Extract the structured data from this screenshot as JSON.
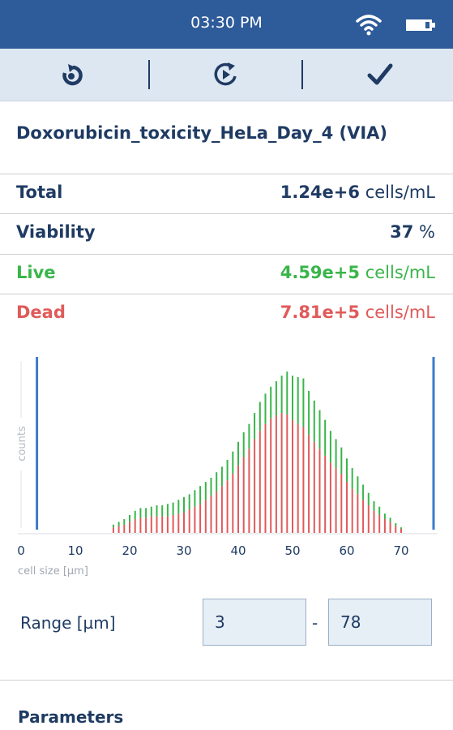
{
  "status_bar": {
    "time": "03:30 PM",
    "wifi_icon": "wifi-icon",
    "battery_icon": "battery-icon"
  },
  "toolbar": {
    "icons": [
      "microscope-refresh-icon",
      "replay-icon",
      "checkmark-icon"
    ]
  },
  "measurement": {
    "title": "Doxorubicin_toxicity_HeLa_Day_4 (VIA)",
    "rows": [
      {
        "label": "Total",
        "value": "1.24e+6",
        "unit": "cells/mL",
        "color": "#1f3b63"
      },
      {
        "label": "Viability",
        "value": "37",
        "unit": "%",
        "color": "#1f3b63"
      },
      {
        "label": "Live",
        "value": "4.59e+5",
        "unit": "cells/mL",
        "color": "#39b54a"
      },
      {
        "label": "Dead",
        "value": "7.81e+5",
        "unit": "cells/mL",
        "color": "#e05a5a"
      }
    ]
  },
  "chart_data": {
    "type": "bar",
    "stacked": true,
    "xlabel": "cell size [µm]",
    "ylabel": "counts",
    "xlim": [
      0,
      75
    ],
    "xticks": [
      0,
      10,
      20,
      30,
      40,
      50,
      60,
      70
    ],
    "range_markers": [
      3,
      78
    ],
    "x": [
      17,
      18,
      19,
      20,
      21,
      22,
      23,
      24,
      25,
      26,
      27,
      28,
      29,
      30,
      31,
      32,
      33,
      34,
      35,
      36,
      37,
      38,
      39,
      40,
      41,
      42,
      43,
      44,
      45,
      46,
      47,
      48,
      49,
      50,
      51,
      52,
      53,
      54,
      55,
      56,
      57,
      58,
      59,
      60,
      61,
      62,
      63,
      64,
      65,
      66,
      67,
      68,
      69,
      70
    ],
    "series": [
      {
        "name": "Dead",
        "color": "#e05a5a",
        "values": [
          4,
          5,
          6,
          8,
          10,
          11,
          11,
          12,
          12,
          12,
          12,
          13,
          14,
          15,
          17,
          19,
          21,
          24,
          27,
          30,
          34,
          38,
          43,
          49,
          55,
          61,
          68,
          74,
          79,
          83,
          85,
          87,
          86,
          82,
          79,
          77,
          71,
          66,
          61,
          56,
          51,
          47,
          43,
          37,
          32,
          28,
          24,
          20,
          16,
          13,
          10,
          8,
          5,
          3
        ]
      },
      {
        "name": "Live",
        "color": "#39b54a",
        "values": [
          2,
          3,
          4,
          5,
          6,
          7,
          7,
          7,
          8,
          8,
          9,
          9,
          10,
          11,
          11,
          12,
          13,
          13,
          13,
          14,
          14,
          15,
          16,
          17,
          18,
          18,
          19,
          21,
          22,
          23,
          25,
          27,
          31,
          32,
          34,
          35,
          32,
          30,
          28,
          26,
          23,
          21,
          19,
          17,
          15,
          13,
          11,
          9,
          7,
          6,
          4,
          3,
          2,
          1
        ]
      }
    ]
  },
  "range": {
    "label": "Range [µm]",
    "min": "3",
    "separator": "-",
    "max": "78"
  },
  "parameters": {
    "heading": "Parameters"
  }
}
